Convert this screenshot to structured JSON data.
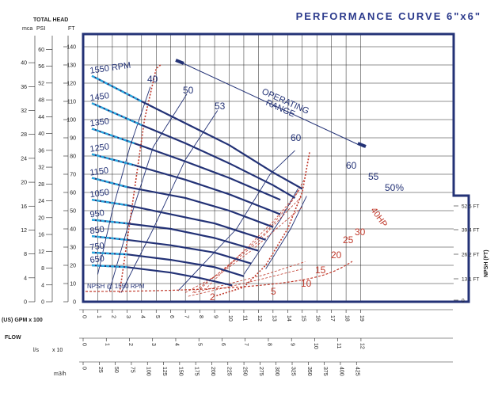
{
  "chart_data": {
    "type": "line",
    "title": "PERFORMANCE CURVE 6\"x6\"",
    "header": {
      "total_head": "TOTAL HEAD",
      "mca": "mca",
      "psi": "PSI",
      "ft": "FT"
    },
    "flow_label": "FLOW",
    "gpm_label": "(US) GPM  x 100",
    "ls_label": "l/s",
    "ls_mult": "x 10",
    "m3h_label": "m3/h",
    "npsh_label": "NPSH (FT)",
    "npsh_note": "NPSH @ 1550 RPM",
    "range_label": [
      "OPERATING",
      "RANGE"
    ],
    "x_gpm_ticks": [
      "0",
      "1",
      "2",
      "3",
      "4",
      "5",
      "6",
      "7",
      "8",
      "9",
      "10",
      "11",
      "12",
      "13",
      "14",
      "15",
      "16",
      "17",
      "18",
      "19"
    ],
    "x_ls_ticks": [
      "0",
      "1",
      "2",
      "3",
      "4",
      "5",
      "6",
      "7",
      "8",
      "9",
      "10",
      "11",
      "12"
    ],
    "x_m3h_ticks": [
      "0",
      "25",
      "50",
      "75",
      "100",
      "125",
      "150",
      "175",
      "200",
      "225",
      "250",
      "275",
      "300",
      "325",
      "350",
      "375",
      "400",
      "425"
    ],
    "ft_ticks": [
      "0",
      "10",
      "20",
      "30",
      "40",
      "50",
      "60",
      "70",
      "80",
      "90",
      "100",
      "110",
      "120",
      "130",
      "140"
    ],
    "psi_ticks": [
      "0",
      "4",
      "8",
      "12",
      "16",
      "20",
      "24",
      "28",
      "32",
      "36",
      "40",
      "44",
      "48",
      "52",
      "56",
      "60"
    ],
    "mca_ticks": [
      "0",
      "4",
      "8",
      "12",
      "16",
      "20",
      "24",
      "28",
      "32",
      "36",
      "40"
    ],
    "npsh_ticks": [
      "0",
      "13.1 FT",
      "26.2 FT",
      "39.4 FT",
      "52.5 FT"
    ],
    "xlim": [
      0,
      19
    ],
    "ylim": [
      0,
      140
    ],
    "rpm_series": [
      {
        "name": "1550 RPM",
        "gpm": [
          0.6,
          4,
          7,
          10,
          13,
          15
        ],
        "ft": [
          124,
          110,
          98,
          86,
          71,
          62
        ]
      },
      {
        "name": "1450",
        "gpm": [
          0.6,
          4,
          7,
          10,
          13,
          14.5
        ],
        "ft": [
          109,
          97,
          87,
          76,
          64,
          57
        ]
      },
      {
        "name": "1350",
        "gpm": [
          0.6,
          3.5,
          7,
          10,
          13.5
        ],
        "ft": [
          95,
          87,
          77,
          68,
          56
        ]
      },
      {
        "name": "1250",
        "gpm": [
          0.6,
          3.5,
          7,
          10,
          13.5
        ],
        "ft": [
          81,
          75,
          67,
          59,
          48
        ]
      },
      {
        "name": "1150",
        "gpm": [
          0.6,
          3,
          7,
          10,
          13
        ],
        "ft": [
          68,
          63,
          57,
          50,
          41
        ]
      },
      {
        "name": "1050",
        "gpm": [
          0.6,
          3,
          6,
          9,
          12.5
        ],
        "ft": [
          56,
          53,
          48,
          43,
          34
        ]
      },
      {
        "name": "950",
        "gpm": [
          0.6,
          3,
          6,
          9,
          12
        ],
        "ft": [
          45,
          43,
          40,
          35,
          28
        ]
      },
      {
        "name": "850",
        "gpm": [
          0.6,
          3,
          6,
          9,
          11.5
        ],
        "ft": [
          36,
          34,
          31,
          27,
          21
        ]
      },
      {
        "name": "750",
        "gpm": [
          0.6,
          3,
          6,
          9,
          11
        ],
        "ft": [
          27,
          26,
          23,
          19,
          14
        ]
      },
      {
        "name": "650",
        "gpm": [
          0.6,
          3,
          6,
          8,
          10.2
        ],
        "ft": [
          20,
          19,
          16,
          13,
          9
        ]
      }
    ],
    "efficiency_labels": [
      "40",
      "50",
      "53",
      "60",
      "60",
      "55",
      "50%"
    ],
    "hp_labels": [
      "2",
      "5",
      "10",
      "15",
      "20",
      "25",
      "30",
      "40HP"
    ]
  }
}
